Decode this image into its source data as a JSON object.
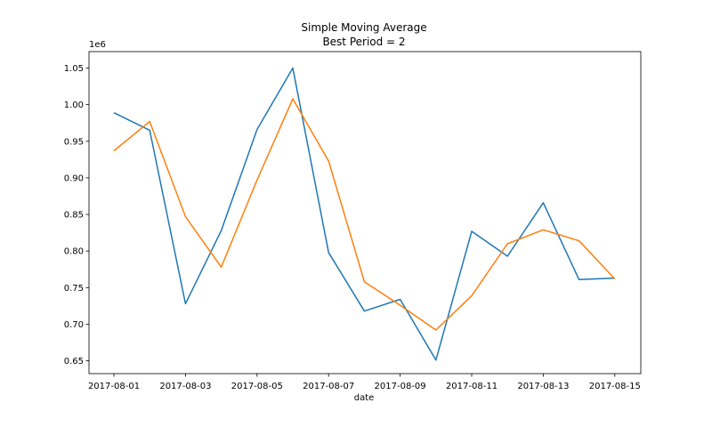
{
  "chart_data": {
    "type": "line",
    "title": [
      "Simple Moving Average",
      "Best Period = 2"
    ],
    "xlabel": "date",
    "ylabel": "",
    "y_offset_label": "1e6",
    "x": [
      "2017-08-01",
      "2017-08-02",
      "2017-08-03",
      "2017-08-04",
      "2017-08-05",
      "2017-08-06",
      "2017-08-07",
      "2017-08-08",
      "2017-08-09",
      "2017-08-10",
      "2017-08-11",
      "2017-08-12",
      "2017-08-13",
      "2017-08-14",
      "2017-08-15"
    ],
    "xticks": [
      "2017-08-01",
      "2017-08-03",
      "2017-08-05",
      "2017-08-07",
      "2017-08-09",
      "2017-08-11",
      "2017-08-13",
      "2017-08-15"
    ],
    "yticks": [
      "0.65",
      "0.70",
      "0.75",
      "0.80",
      "0.85",
      "0.90",
      "0.95",
      "1.00",
      "1.05"
    ],
    "ytick_values": [
      0.65,
      0.7,
      0.75,
      0.8,
      0.85,
      0.9,
      0.95,
      1.0,
      1.05
    ],
    "ylim": [
      0.6325,
      1.0725
    ],
    "grid": false,
    "series": [
      {
        "color": "#1f77b4",
        "values": [
          0.989,
          0.965,
          0.728,
          0.828,
          0.966,
          1.05,
          0.798,
          0.718,
          0.734,
          0.651,
          0.827,
          0.793,
          0.866,
          0.761,
          0.763
        ]
      },
      {
        "color": "#ff7f0e",
        "values": [
          0.937,
          0.977,
          0.847,
          0.778,
          0.897,
          1.008,
          0.923,
          0.758,
          0.726,
          0.692,
          0.739,
          0.81,
          0.829,
          0.814,
          0.762
        ]
      }
    ]
  }
}
